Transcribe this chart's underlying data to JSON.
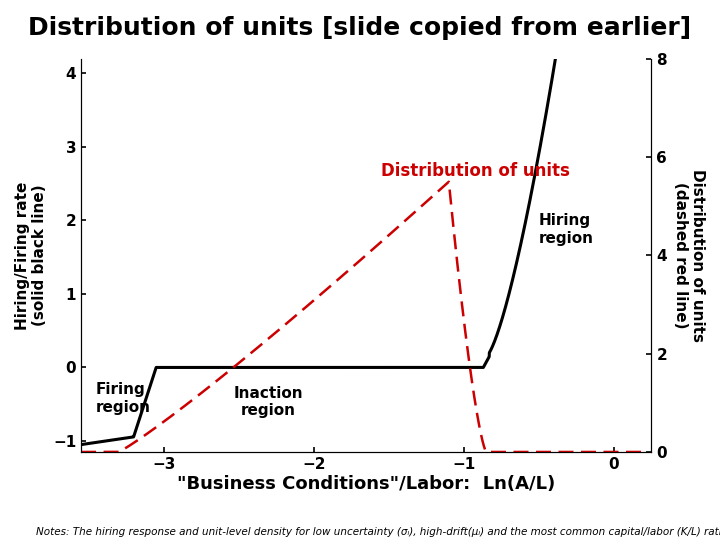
{
  "title": "Distribution of units [slide copied from earlier]",
  "xlabel": "\"Business Conditions\"/Labor:  Ln(A/L)",
  "ylabel_left": "Hiring/Firing rate\n(solid black line)",
  "ylabel_right": "Distribution of units\n(dashed red line)",
  "annotation_dist": "Distribution of units",
  "annotation_hiring": "Hiring\nregion",
  "annotation_firing": "Firing\nregion",
  "annotation_inaction": "Inaction\nregion",
  "footnote": "Notes: The hiring response and unit-level density for low uncertainty (σₗ), high-drift(μₗ) and the most common capital/labor (K/L) ratio.",
  "xlim": [
    -3.55,
    0.25
  ],
  "ylim_left": [
    -1.15,
    4.2
  ],
  "ylim_right": [
    0,
    8
  ],
  "xticks": [
    -3,
    -2,
    -1,
    0
  ],
  "yticks_left": [
    -1,
    0,
    1,
    2,
    3,
    4
  ],
  "yticks_right": [
    0,
    2,
    4,
    6,
    8
  ],
  "black_color": "#000000",
  "red_color": "#cc0000",
  "background_color": "#ffffff",
  "title_fontsize": 18,
  "label_fontsize": 11,
  "annotation_fontsize": 11,
  "footnote_fontsize": 7.5,
  "firing_boundary": -3.05,
  "hiring_boundary": -0.85,
  "red_peak_x": -1.1,
  "red_peak_y": 5.5,
  "red_start_x": -3.3,
  "black_firing_val": -1.05,
  "black_hiring_slope": 12.0
}
